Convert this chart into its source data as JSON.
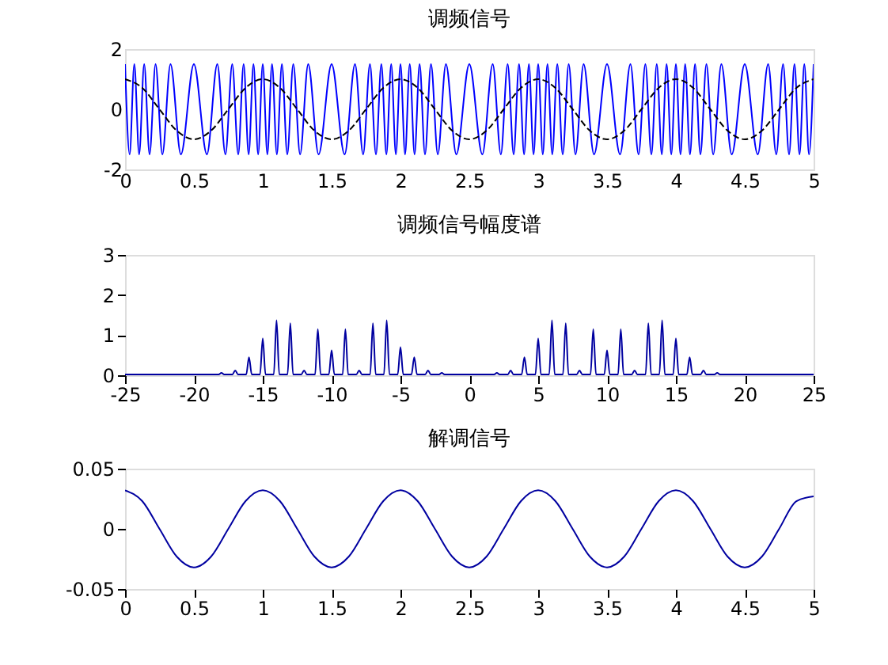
{
  "chart_data": [
    {
      "type": "line",
      "title": "调频信号",
      "xlim": [
        0,
        5
      ],
      "xticks": [
        0,
        0.5,
        1,
        1.5,
        2,
        2.5,
        3,
        3.5,
        4,
        4.5,
        5
      ],
      "ylim": [
        -2,
        2
      ],
      "yticks": [
        -2,
        0,
        2
      ],
      "grid": false,
      "series": [
        {
          "color": "#0000ff",
          "x": [
            0,
            0.0334,
            0.0673,
            0.1023,
            0.139,
            0.178,
            0.2216,
            0.271,
            0.33,
            0.4055,
            0.5,
            0.5945,
            0.67,
            0.729,
            0.7784,
            0.822,
            0.861,
            0.8977,
            0.9327,
            0.9666,
            1,
            1.0334,
            1.0673,
            1.1023,
            1.139,
            1.178,
            1.2216,
            1.271,
            1.33,
            1.4055,
            1.5,
            1.5945,
            1.67,
            1.729,
            1.7784,
            1.822,
            1.861,
            1.8977,
            1.9327,
            1.9666,
            2,
            2.0334,
            2.0673,
            2.1023,
            2.139,
            2.178,
            2.2216,
            2.271,
            2.33,
            2.4055,
            2.5,
            2.5945,
            2.67,
            2.729,
            2.7784,
            2.822,
            2.861,
            2.8977,
            2.9327,
            2.9666,
            3,
            3.0334,
            3.0673,
            3.1023,
            3.139,
            3.178,
            3.2216,
            3.271,
            3.33,
            3.4055,
            3.5,
            3.5945,
            3.67,
            3.729,
            3.7784,
            3.822,
            3.861,
            3.8977,
            3.9327,
            3.9666,
            4,
            4.0334,
            4.0673,
            4.1023,
            4.139,
            4.178,
            4.2216,
            4.271,
            4.33,
            4.4055,
            4.5,
            4.5945,
            4.67,
            4.729,
            4.7784,
            4.822,
            4.861,
            4.8977,
            4.9327,
            4.9666,
            5
          ],
          "values": [
            1.5,
            -1.5,
            1.5,
            -1.5,
            1.5,
            -1.5,
            1.5,
            -1.5,
            1.5,
            -1.5,
            1.5,
            -1.5,
            1.5,
            -1.5,
            1.5,
            -1.5,
            1.5,
            -1.5,
            1.5,
            -1.5,
            1.5,
            -1.5,
            1.5,
            -1.5,
            1.5,
            -1.5,
            1.5,
            -1.5,
            1.5,
            -1.5,
            1.5,
            -1.5,
            1.5,
            -1.5,
            1.5,
            -1.5,
            1.5,
            -1.5,
            1.5,
            -1.5,
            1.5,
            -1.5,
            1.5,
            -1.5,
            1.5,
            -1.5,
            1.5,
            -1.5,
            1.5,
            -1.5,
            1.5,
            -1.5,
            1.5,
            -1.5,
            1.5,
            -1.5,
            1.5,
            -1.5,
            1.5,
            -1.5,
            1.5,
            -1.5,
            1.5,
            -1.5,
            1.5,
            -1.5,
            1.5,
            -1.5,
            1.5,
            -1.5,
            1.5,
            -1.5,
            1.5,
            -1.5,
            1.5,
            -1.5,
            1.5,
            -1.5,
            1.5,
            -1.5,
            1.5,
            -1.5,
            1.5,
            -1.5,
            1.5,
            -1.5,
            1.5,
            -1.5,
            1.5,
            -1.5,
            1.5,
            -1.5,
            1.5,
            -1.5,
            1.5,
            -1.5,
            1.5,
            -1.5,
            1.5,
            -1.5,
            1.5
          ]
        },
        {
          "color": "#000000",
          "line_style": "dashed",
          "x": [
            0,
            0.125,
            0.25,
            0.375,
            0.5,
            0.625,
            0.75,
            0.875,
            1,
            1.125,
            1.25,
            1.375,
            1.5,
            1.625,
            1.75,
            1.875,
            2,
            2.125,
            2.25,
            2.375,
            2.5,
            2.625,
            2.75,
            2.875,
            3,
            3.125,
            3.25,
            3.375,
            3.5,
            3.625,
            3.75,
            3.875,
            4,
            4.125,
            4.25,
            4.375,
            4.5,
            4.625,
            4.75,
            4.875,
            5
          ],
          "values": [
            1,
            0.71,
            0,
            -0.71,
            -1,
            -0.71,
            0,
            0.71,
            1,
            0.71,
            0,
            -0.71,
            -1,
            -0.71,
            0,
            0.71,
            1,
            0.71,
            0,
            -0.71,
            -1,
            -0.71,
            0,
            0.71,
            1,
            0.71,
            0,
            -0.71,
            -1,
            -0.71,
            0,
            0.71,
            1,
            0.71,
            0,
            -0.71,
            -1,
            -0.71,
            0,
            0.71,
            1
          ]
        }
      ]
    },
    {
      "type": "line",
      "title": "调频信号幅度谱",
      "xlim": [
        -25,
        25
      ],
      "xticks": [
        -25,
        -20,
        -15,
        -10,
        -5,
        0,
        5,
        10,
        15,
        20,
        25
      ],
      "ylim": [
        0,
        3
      ],
      "yticks": [
        0,
        1,
        2,
        3
      ],
      "grid": false,
      "series": [
        {
          "color": "#0000a0",
          "x": [
            -25,
            -18.2,
            -18,
            -17.8,
            -17.2,
            -17,
            -16.8,
            -16.2,
            -16,
            -15.8,
            -15.2,
            -15,
            -14.8,
            -14.2,
            -14,
            -13.8,
            -13.2,
            -13,
            -12.8,
            -12.2,
            -12,
            -11.8,
            -11.2,
            -11,
            -10.8,
            -10.2,
            -10,
            -9.8,
            -9.2,
            -9,
            -8.8,
            -8.2,
            -8,
            -7.8,
            -7.2,
            -7,
            -6.8,
            -6.2,
            -6,
            -5.8,
            -5.2,
            -5,
            -4.8,
            -4.2,
            -4,
            -3.8,
            -3.2,
            -3,
            -2.8,
            -2.2,
            -2,
            -1.8,
            1.8,
            2,
            2.2,
            2.8,
            3,
            3.2,
            3.8,
            4,
            4.2,
            4.8,
            5,
            5.2,
            5.8,
            6,
            6.2,
            6.8,
            7,
            7.2,
            7.8,
            8,
            8.2,
            8.8,
            9,
            9.2,
            9.8,
            10,
            10.2,
            10.8,
            11,
            11.2,
            11.8,
            12,
            12.2,
            12.8,
            13,
            13.2,
            13.8,
            14,
            14.2,
            14.8,
            15,
            15.2,
            15.8,
            16,
            16.2,
            16.8,
            17,
            17.2,
            17.8,
            18,
            18.2,
            25
          ],
          "values": [
            0.02,
            0.02,
            0.06,
            0.02,
            0.02,
            0.12,
            0.02,
            0.02,
            0.45,
            0.02,
            0.02,
            0.92,
            0.02,
            0.02,
            1.37,
            0.02,
            0.02,
            1.3,
            0.02,
            0.02,
            0.12,
            0.02,
            0.02,
            1.15,
            0.02,
            0.02,
            0.62,
            0.02,
            0.02,
            1.15,
            0.02,
            0.02,
            0.12,
            0.02,
            0.02,
            1.3,
            0.02,
            0.02,
            1.37,
            0.02,
            0.02,
            0.7,
            0.02,
            0.02,
            0.45,
            0.02,
            0.02,
            0.12,
            0.02,
            0.02,
            0.06,
            0.02,
            0.02,
            0.06,
            0.02,
            0.02,
            0.12,
            0.02,
            0.02,
            0.45,
            0.02,
            0.02,
            0.92,
            0.02,
            0.02,
            1.37,
            0.02,
            0.02,
            1.3,
            0.02,
            0.02,
            0.12,
            0.02,
            0.02,
            1.15,
            0.02,
            0.02,
            0.62,
            0.02,
            0.02,
            1.15,
            0.02,
            0.02,
            0.12,
            0.02,
            0.02,
            1.3,
            0.02,
            0.02,
            1.37,
            0.02,
            0.02,
            0.92,
            0.02,
            0.02,
            0.45,
            0.02,
            0.02,
            0.12,
            0.02,
            0.02,
            0.06,
            0.02,
            0.02
          ]
        }
      ]
    },
    {
      "type": "line",
      "title": "解调信号",
      "xlim": [
        0,
        5
      ],
      "xticks": [
        0,
        0.5,
        1,
        1.5,
        2,
        2.5,
        3,
        3.5,
        4,
        4.5,
        5
      ],
      "ylim": [
        -0.05,
        0.05
      ],
      "yticks": [
        -0.05,
        0,
        0.05
      ],
      "grid": false,
      "series": [
        {
          "color": "#0000a0",
          "x": [
            0,
            0.125,
            0.25,
            0.375,
            0.5,
            0.625,
            0.75,
            0.875,
            1,
            1.125,
            1.25,
            1.375,
            1.5,
            1.625,
            1.75,
            1.875,
            2,
            2.125,
            2.25,
            2.375,
            2.5,
            2.625,
            2.75,
            2.875,
            3,
            3.125,
            3.25,
            3.375,
            3.5,
            3.625,
            3.75,
            3.875,
            4,
            4.125,
            4.25,
            4.375,
            4.5,
            4.625,
            4.75,
            4.875,
            5
          ],
          "values": [
            0.032,
            0.023,
            0,
            -0.023,
            -0.032,
            -0.023,
            0,
            0.023,
            0.032,
            0.023,
            0,
            -0.023,
            -0.032,
            -0.023,
            0,
            0.023,
            0.032,
            0.023,
            0,
            -0.023,
            -0.032,
            -0.023,
            0,
            0.023,
            0.032,
            0.023,
            0,
            -0.023,
            -0.032,
            -0.023,
            0,
            0.023,
            0.032,
            0.023,
            0,
            -0.023,
            -0.032,
            -0.023,
            0,
            0.023,
            0.027
          ]
        }
      ]
    }
  ]
}
